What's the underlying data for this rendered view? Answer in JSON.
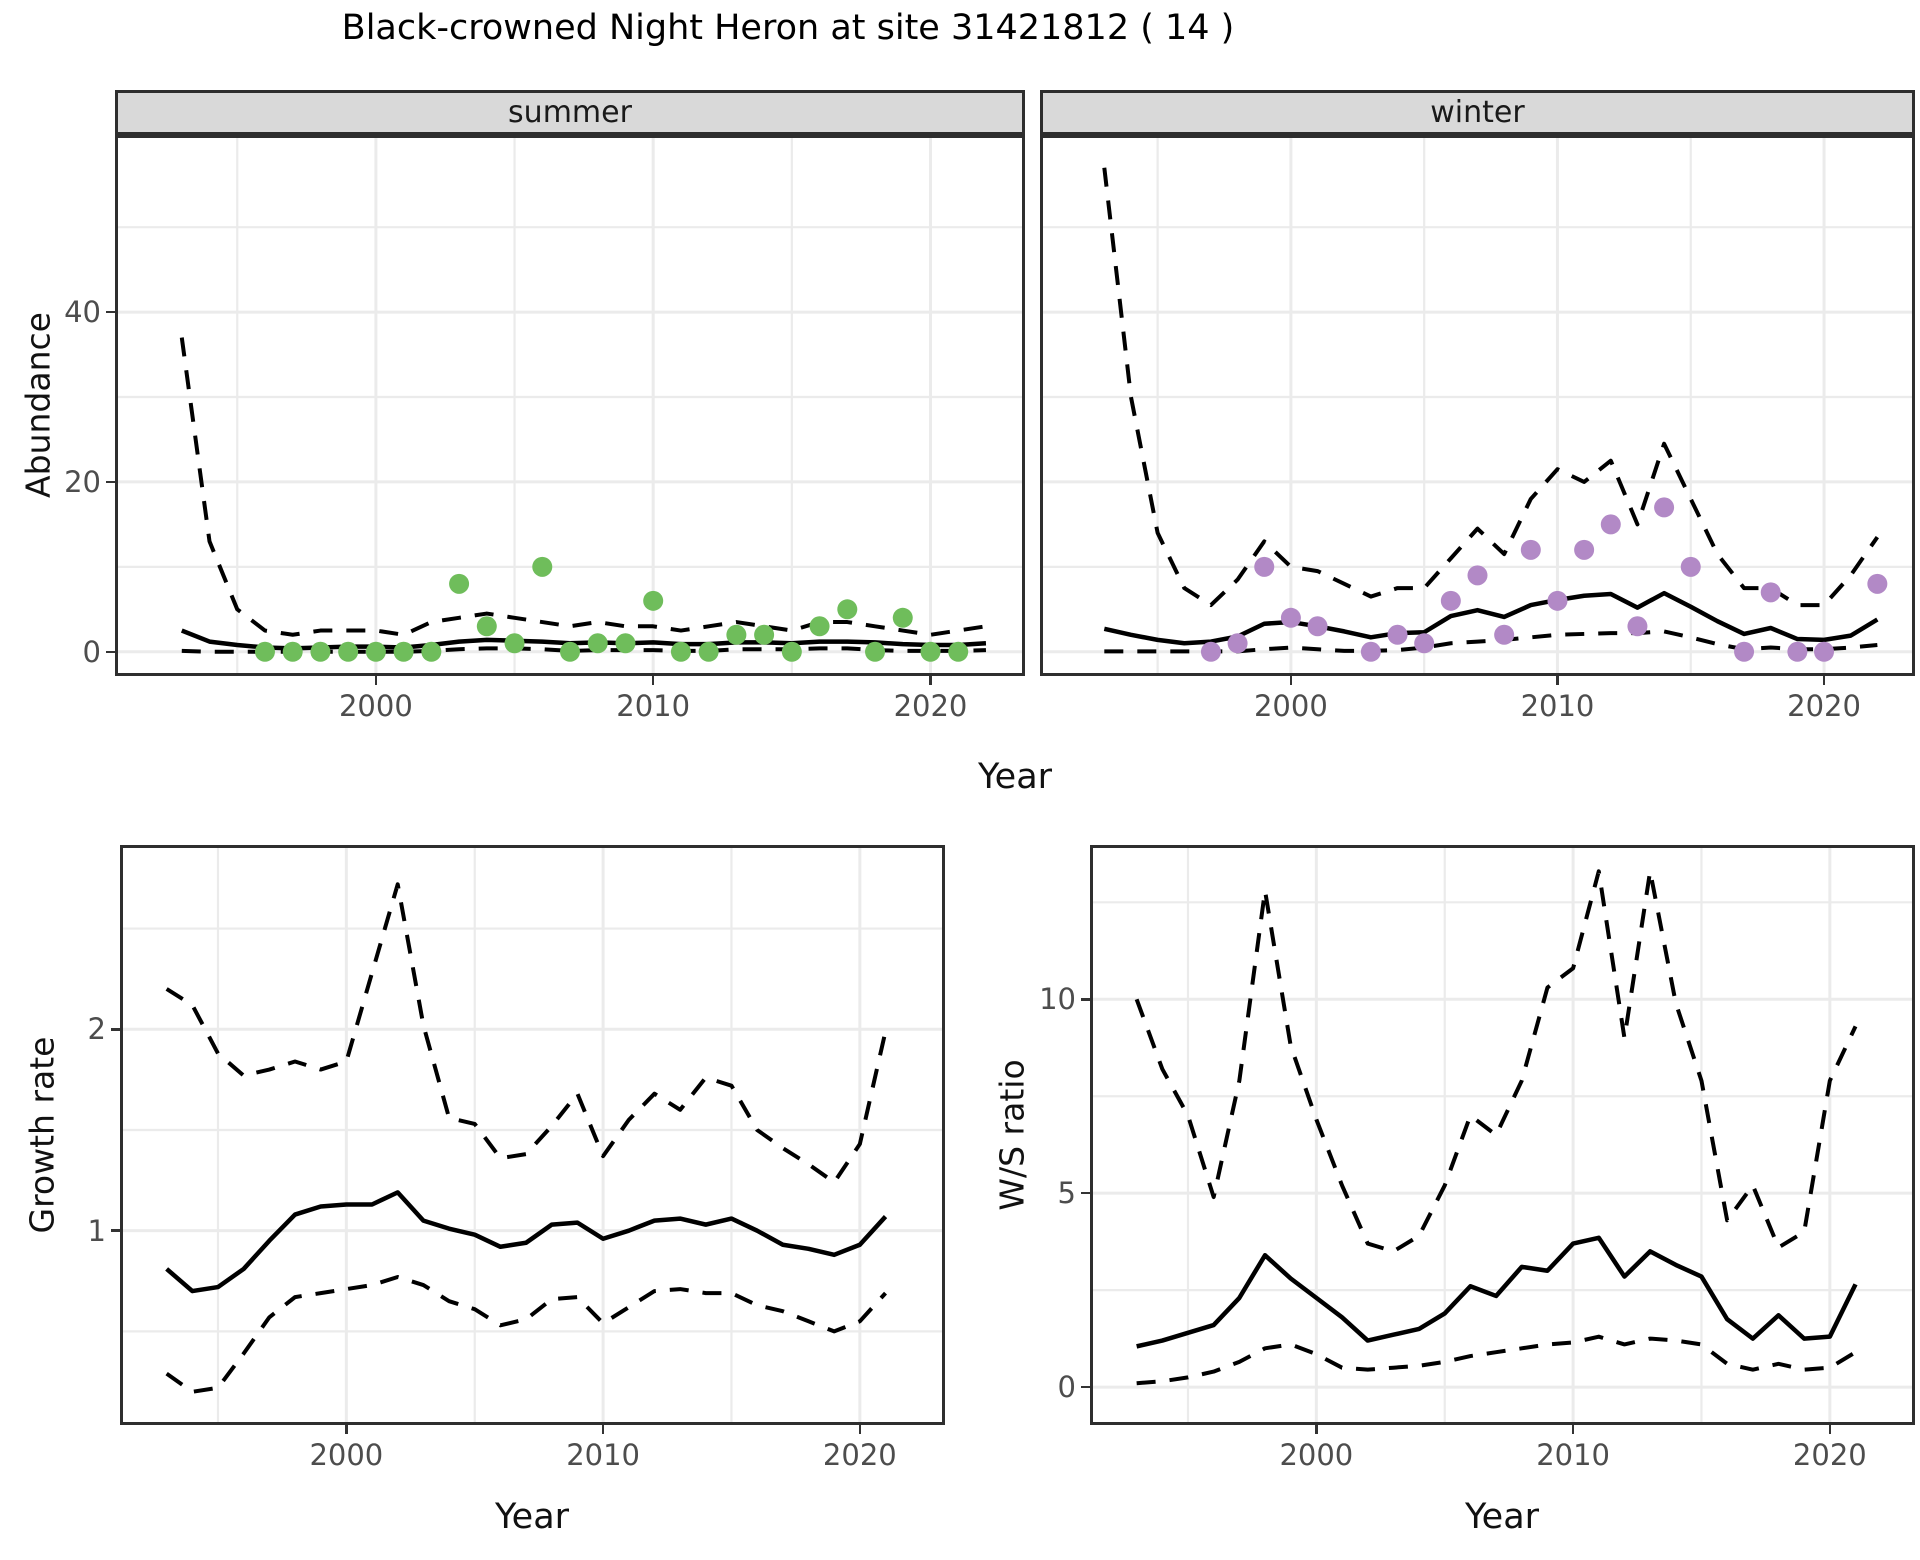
{
  "title": "Black-crowned Night Heron at site 31421812 ( 14 )",
  "top_row": {
    "ylabel": "Abundance",
    "xlabel": "Year"
  },
  "colors": {
    "summer_points": "#6FBD5B",
    "winter_points": "#B289C6",
    "line": "#000000",
    "strip_fill": "#D9D9D9",
    "gridline": "#EBEBEB",
    "panel_border": "#2e2e2e",
    "tick_text": "#4d4d4d"
  },
  "chart_data": [
    {
      "id": "summer_abundance",
      "type": "line",
      "facet_label": "summer",
      "ylabel": "Abundance",
      "xlabel": "Year",
      "xlim": [
        1990.7,
        2023.3
      ],
      "ylim": [
        -2.5,
        60.5
      ],
      "xticks": [
        2000,
        2010,
        2020
      ],
      "xminor": [
        1995,
        2005,
        2015
      ],
      "yticks": [
        0,
        20,
        40
      ],
      "yminor": [
        10,
        30,
        50
      ],
      "years": [
        1993,
        1994,
        1995,
        1996,
        1997,
        1998,
        1999,
        2000,
        2001,
        2002,
        2003,
        2004,
        2005,
        2006,
        2007,
        2008,
        2009,
        2010,
        2011,
        2012,
        2013,
        2014,
        2015,
        2016,
        2017,
        2018,
        2019,
        2020,
        2021,
        2022
      ],
      "series": [
        {
          "name": "upper_ci",
          "style": "dashed",
          "values": [
            37,
            13,
            5,
            2.5,
            2,
            2.5,
            2.5,
            2.5,
            2,
            3.5,
            4,
            4.5,
            4,
            3.5,
            3,
            3.5,
            3,
            3,
            2.5,
            3,
            3.5,
            3,
            2.5,
            3.5,
            3.5,
            3,
            2.5,
            2,
            2.5,
            3
          ]
        },
        {
          "name": "median",
          "style": "solid",
          "values": [
            2.5,
            1.2,
            0.8,
            0.5,
            0.4,
            0.5,
            0.6,
            0.6,
            0.5,
            0.8,
            1.2,
            1.4,
            1.3,
            1.2,
            1.0,
            1.1,
            1.0,
            1.1,
            0.9,
            0.9,
            1.1,
            1.1,
            1.0,
            1.2,
            1.2,
            1.1,
            0.9,
            0.8,
            0.8,
            1.0
          ]
        },
        {
          "name": "lower_ci",
          "style": "dashed",
          "values": [
            0.1,
            0,
            0,
            0,
            0,
            0,
            0,
            0,
            0,
            0.1,
            0.3,
            0.4,
            0.4,
            0.3,
            0.1,
            0.2,
            0.2,
            0.2,
            0.1,
            0.1,
            0.3,
            0.3,
            0.3,
            0.4,
            0.4,
            0.2,
            0.1,
            0.1,
            0.1,
            0.2
          ]
        }
      ],
      "observations": {
        "marker_color": "#6FBD5B",
        "years": [
          1996,
          1997,
          1998,
          1999,
          2000,
          2001,
          2002,
          2003,
          2004,
          2005,
          2006,
          2007,
          2008,
          2009,
          2010,
          2011,
          2012,
          2013,
          2014,
          2015,
          2016,
          2017,
          2018,
          2019,
          2020,
          2021
        ],
        "values": [
          0,
          0,
          0,
          0,
          0,
          0,
          0,
          8,
          3,
          1,
          10,
          0,
          1,
          1,
          6,
          0,
          0,
          2,
          2,
          0,
          3,
          5,
          0,
          4,
          0,
          0
        ]
      }
    },
    {
      "id": "winter_abundance",
      "type": "line",
      "facet_label": "winter",
      "ylabel": "Abundance",
      "xlabel": "Year",
      "xlim": [
        1990.7,
        2023.3
      ],
      "ylim": [
        -2.5,
        60.5
      ],
      "xticks": [
        2000,
        2010,
        2020
      ],
      "xminor": [
        1995,
        2005,
        2015
      ],
      "yticks": [
        0,
        20,
        40
      ],
      "yminor": [
        10,
        30,
        50
      ],
      "years": [
        1993,
        1994,
        1995,
        1996,
        1997,
        1998,
        1999,
        2000,
        2001,
        2002,
        2003,
        2004,
        2005,
        2006,
        2007,
        2008,
        2009,
        2010,
        2011,
        2012,
        2013,
        2014,
        2015,
        2016,
        2017,
        2018,
        2019,
        2020,
        2021,
        2022
      ],
      "series": [
        {
          "name": "upper_ci",
          "style": "dashed",
          "values": [
            57,
            30,
            14,
            7.5,
            5.5,
            8.5,
            13,
            10,
            9.5,
            8,
            6.5,
            7.5,
            7.5,
            11,
            14.5,
            11.5,
            18,
            21.5,
            20,
            22.5,
            15,
            24.5,
            18,
            11.5,
            7.5,
            7.5,
            5.5,
            5.5,
            9,
            13.5
          ]
        },
        {
          "name": "median",
          "style": "solid",
          "values": [
            2.7,
            2.0,
            1.4,
            1.0,
            1.2,
            1.8,
            3.3,
            3.5,
            3.0,
            2.4,
            1.7,
            2.2,
            2.3,
            4.2,
            4.9,
            4.1,
            5.5,
            6.1,
            6.6,
            6.8,
            5.2,
            6.9,
            5.3,
            3.6,
            2.1,
            2.8,
            1.5,
            1.4,
            1.9,
            3.8
          ]
        },
        {
          "name": "lower_ci",
          "style": "dashed",
          "values": [
            0.05,
            0.05,
            0.05,
            0.05,
            0.05,
            0.05,
            0.3,
            0.5,
            0.3,
            0.1,
            0.1,
            0.2,
            0.5,
            1.0,
            1.2,
            1.4,
            1.7,
            2.0,
            2.1,
            2.2,
            2.2,
            2.4,
            1.7,
            0.9,
            0.3,
            0.5,
            0.3,
            0.3,
            0.5,
            0.8
          ]
        }
      ],
      "observations": {
        "marker_color": "#B289C6",
        "years": [
          1997,
          1998,
          1999,
          2000,
          2001,
          2003,
          2004,
          2005,
          2006,
          2007,
          2008,
          2009,
          2010,
          2011,
          2012,
          2013,
          2014,
          2015,
          2017,
          2018,
          2019,
          2020,
          2022
        ],
        "values": [
          0,
          1,
          10,
          4,
          3,
          0,
          2,
          1,
          6,
          9,
          2,
          12,
          6,
          12,
          15,
          3,
          17,
          10,
          0,
          7,
          0,
          0,
          8
        ]
      }
    },
    {
      "id": "growth_rate",
      "type": "line",
      "ylabel": "Growth rate",
      "xlabel": "Year",
      "xlim": [
        1991.3,
        2023.2
      ],
      "ylim": [
        0.05,
        2.9
      ],
      "xticks": [
        2000,
        2010,
        2020
      ],
      "xminor": [
        1995,
        2005,
        2015
      ],
      "yticks": [
        1,
        2
      ],
      "yminor": [
        0.5,
        1.5,
        2.5
      ],
      "years": [
        1993,
        1994,
        1995,
        1996,
        1997,
        1998,
        1999,
        2000,
        2001,
        2002,
        2003,
        2004,
        2005,
        2006,
        2007,
        2008,
        2009,
        2010,
        2011,
        2012,
        2013,
        2014,
        2015,
        2016,
        2017,
        2018,
        2019,
        2020,
        2021
      ],
      "series": [
        {
          "name": "upper_ci",
          "style": "dashed",
          "values": [
            2.2,
            2.12,
            1.88,
            1.77,
            1.8,
            1.84,
            1.8,
            1.84,
            2.28,
            2.72,
            2.02,
            1.56,
            1.53,
            1.36,
            1.38,
            1.52,
            1.68,
            1.37,
            1.55,
            1.68,
            1.6,
            1.76,
            1.72,
            1.5,
            1.41,
            1.33,
            1.24,
            1.43,
            1.99
          ]
        },
        {
          "name": "median",
          "style": "solid",
          "values": [
            0.81,
            0.7,
            0.72,
            0.81,
            0.95,
            1.08,
            1.12,
            1.13,
            1.13,
            1.19,
            1.05,
            1.01,
            0.98,
            0.92,
            0.94,
            1.03,
            1.04,
            0.96,
            1.0,
            1.05,
            1.06,
            1.03,
            1.06,
            1.0,
            0.93,
            0.91,
            0.88,
            0.93,
            1.07
          ]
        },
        {
          "name": "lower_ci",
          "style": "dashed",
          "values": [
            0.29,
            0.2,
            0.22,
            0.39,
            0.57,
            0.67,
            0.69,
            0.71,
            0.73,
            0.77,
            0.73,
            0.65,
            0.61,
            0.53,
            0.56,
            0.66,
            0.67,
            0.54,
            0.62,
            0.7,
            0.71,
            0.69,
            0.69,
            0.63,
            0.6,
            0.55,
            0.5,
            0.55,
            0.69
          ]
        }
      ]
    },
    {
      "id": "ws_ratio",
      "type": "line",
      "ylabel": "W/S ratio",
      "xlabel": "Year",
      "xlim": [
        1991.3,
        2023.2
      ],
      "ylim": [
        -0.9,
        13.9
      ],
      "xticks": [
        2000,
        2010,
        2020
      ],
      "xminor": [
        1995,
        2005,
        2015
      ],
      "yticks": [
        0,
        5,
        10
      ],
      "yminor": [
        2.5,
        7.5,
        12.5
      ],
      "years": [
        1993,
        1994,
        1995,
        1996,
        1997,
        1998,
        1999,
        2000,
        2001,
        2002,
        2003,
        2004,
        2005,
        2006,
        2007,
        2008,
        2009,
        2010,
        2011,
        2012,
        2013,
        2014,
        2015,
        2016,
        2017,
        2018,
        2019,
        2020,
        2021
      ],
      "series": [
        {
          "name": "upper_ci",
          "style": "dashed",
          "values": [
            10.0,
            8.2,
            7.0,
            4.9,
            7.9,
            12.8,
            8.8,
            6.9,
            5.2,
            3.7,
            3.5,
            3.9,
            5.2,
            7.0,
            6.5,
            7.9,
            10.3,
            10.8,
            13.3,
            9.0,
            13.3,
            9.9,
            7.9,
            4.3,
            5.2,
            3.6,
            4.0,
            7.9,
            9.3
          ]
        },
        {
          "name": "median",
          "style": "solid",
          "values": [
            1.05,
            1.2,
            1.4,
            1.6,
            2.3,
            3.4,
            2.8,
            2.3,
            1.8,
            1.2,
            1.35,
            1.5,
            1.9,
            2.6,
            2.35,
            3.1,
            3.0,
            3.7,
            3.85,
            2.85,
            3.5,
            3.15,
            2.85,
            1.75,
            1.25,
            1.85,
            1.25,
            1.3,
            2.65
          ]
        },
        {
          "name": "lower_ci",
          "style": "dashed",
          "values": [
            0.1,
            0.15,
            0.25,
            0.4,
            0.65,
            1.0,
            1.1,
            0.85,
            0.5,
            0.45,
            0.5,
            0.55,
            0.65,
            0.8,
            0.9,
            1.0,
            1.1,
            1.15,
            1.3,
            1.1,
            1.25,
            1.2,
            1.1,
            0.6,
            0.45,
            0.6,
            0.45,
            0.5,
            0.9
          ]
        }
      ]
    }
  ]
}
